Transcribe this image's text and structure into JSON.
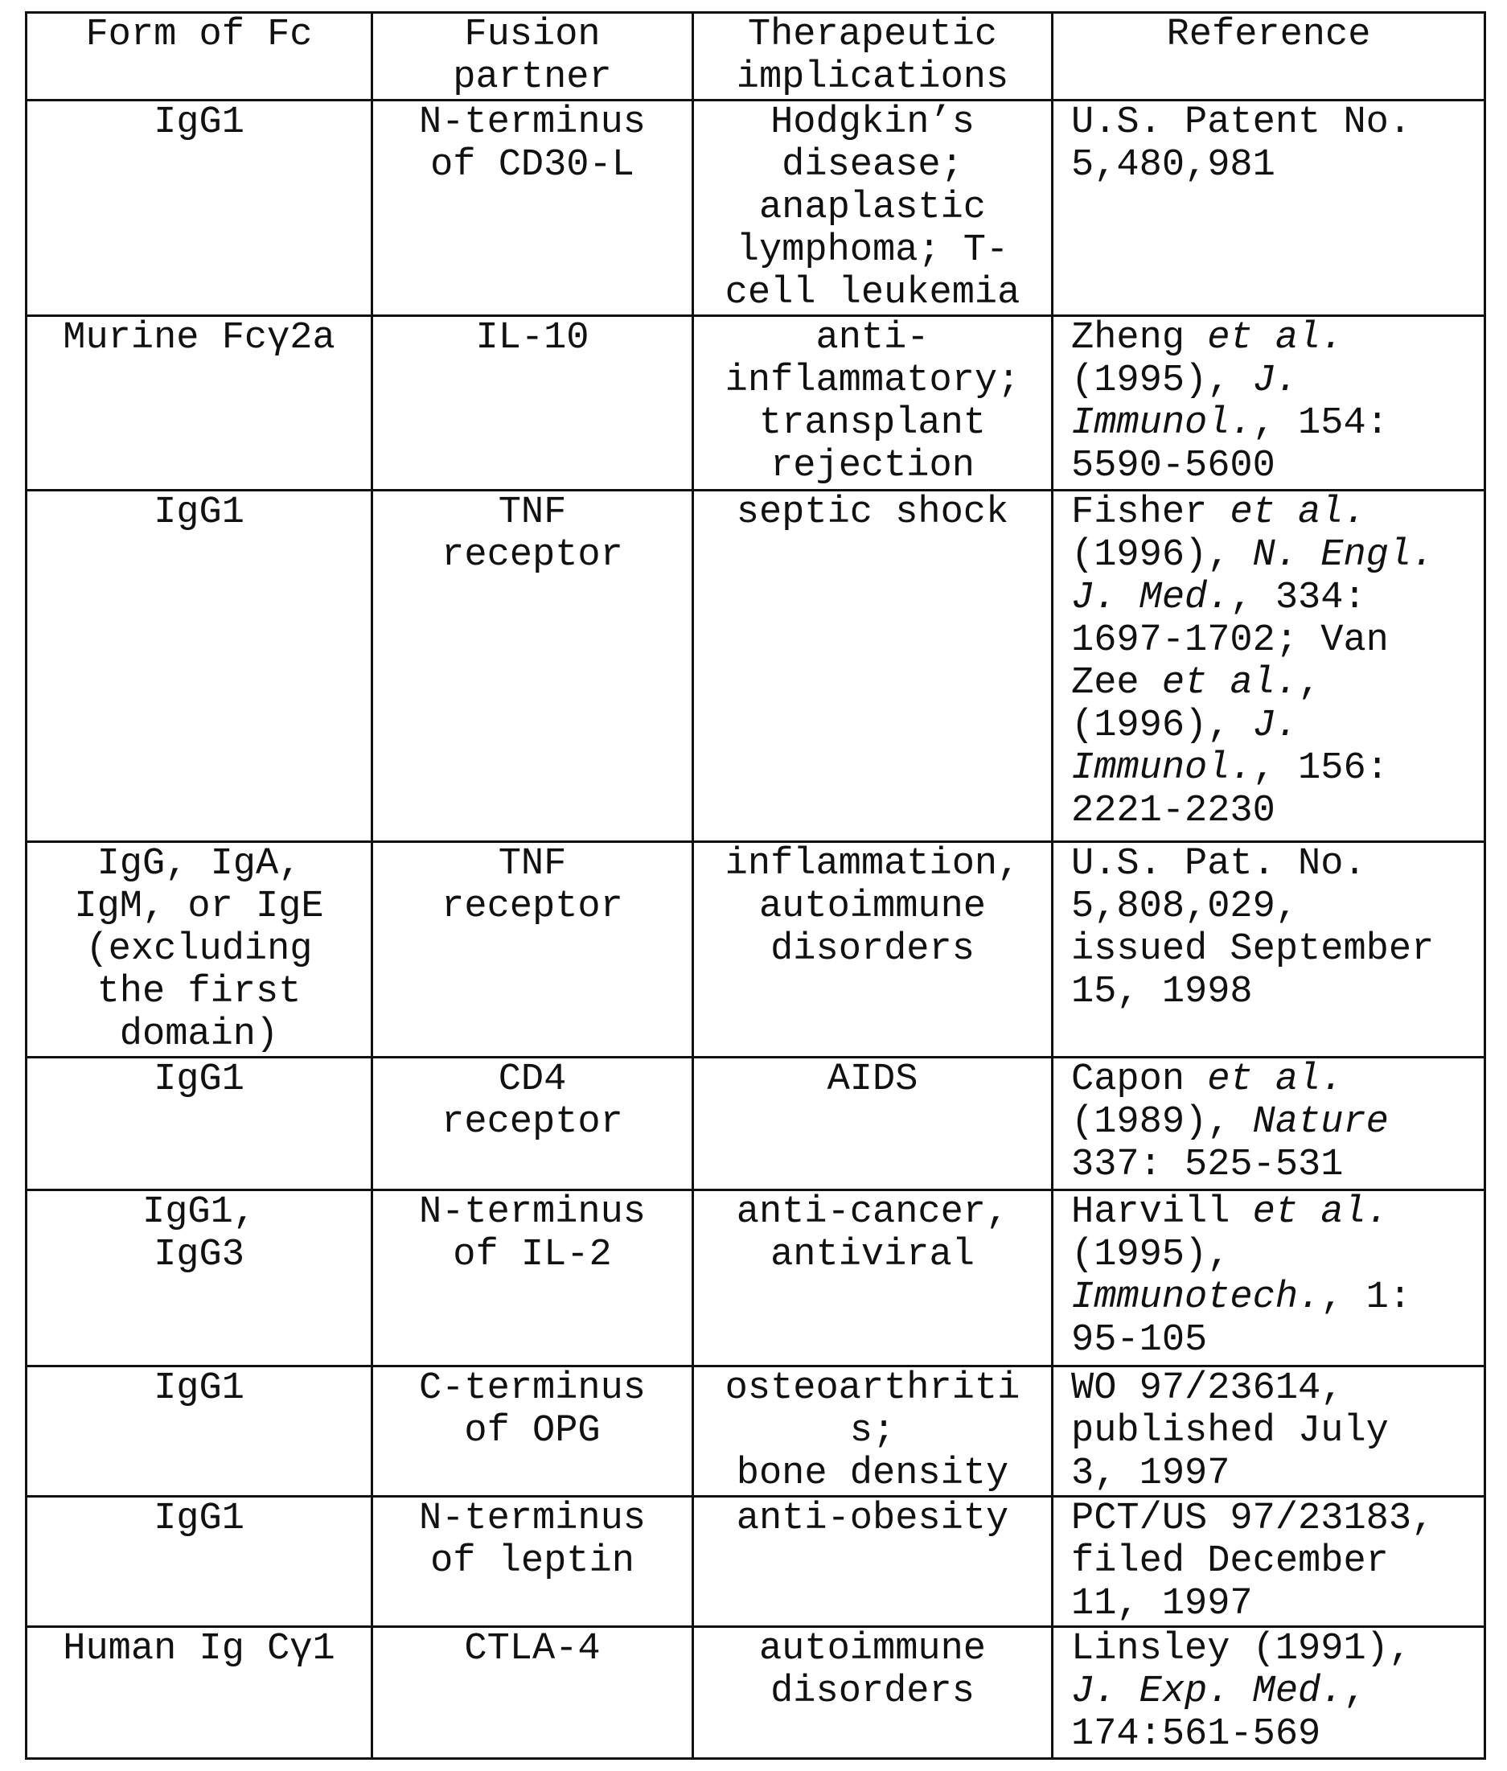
{
  "table": {
    "headers": [
      "Form of Fc",
      "Fusion\npartner",
      "Therapeutic\nimplications",
      "Reference"
    ],
    "rows": [
      {
        "form": "IgG1",
        "partner": "N-terminus\nof CD30-L",
        "implications": "Hodgkin’s\ndisease;\nanaplastic\nlymphoma; T-\ncell leukemia",
        "reference": [
          {
            "text": "U.S. Patent No.\n5,480,981",
            "italic": false
          }
        ]
      },
      {
        "form": "Murine Fcγ2a",
        "partner": "IL-10",
        "implications": "anti-\ninflammatory;\ntransplant\nrejection",
        "reference": [
          {
            "text": "Zheng ",
            "italic": false
          },
          {
            "text": "et al.",
            "italic": true
          },
          {
            "text": "\n(1995), ",
            "italic": false
          },
          {
            "text": "J.",
            "italic": true
          },
          {
            "text": "\n",
            "italic": false
          },
          {
            "text": "Immunol.",
            "italic": true
          },
          {
            "text": ", 154:\n5590-5600",
            "italic": false
          }
        ]
      },
      {
        "form": "IgG1",
        "partner": "TNF\nreceptor",
        "implications": "septic shock",
        "reference": [
          {
            "text": "Fisher ",
            "italic": false
          },
          {
            "text": "et al.",
            "italic": true
          },
          {
            "text": "\n(1996), ",
            "italic": false
          },
          {
            "text": "N. Engl.",
            "italic": true
          },
          {
            "text": "\n",
            "italic": false
          },
          {
            "text": "J. Med.",
            "italic": true
          },
          {
            "text": ", 334:\n1697-1702; Van\nZee ",
            "italic": false
          },
          {
            "text": "et al.",
            "italic": true
          },
          {
            "text": ",\n(1996), ",
            "italic": false
          },
          {
            "text": "J.",
            "italic": true
          },
          {
            "text": "\n",
            "italic": false
          },
          {
            "text": "Immunol.",
            "italic": true
          },
          {
            "text": ", 156:\n2221-2230",
            "italic": false
          }
        ]
      },
      {
        "form": "IgG, IgA,\nIgM, or IgE\n(excluding\nthe first\ndomain)",
        "partner": "TNF\nreceptor",
        "implications": "inflammation,\nautoimmune\ndisorders",
        "reference": [
          {
            "text": "U.S. Pat. No.\n5,808,029,\nissued September\n15, 1998",
            "italic": false
          }
        ]
      },
      {
        "form": "IgG1",
        "partner": "CD4\nreceptor",
        "implications": "AIDS",
        "reference": [
          {
            "text": "Capon ",
            "italic": false
          },
          {
            "text": "et al.",
            "italic": true
          },
          {
            "text": "\n(1989), ",
            "italic": false
          },
          {
            "text": "Nature",
            "italic": true
          },
          {
            "text": "\n337: 525-531",
            "italic": false
          }
        ]
      },
      {
        "form": "IgG1,\nIgG3",
        "partner": "N-terminus\nof IL-2",
        "implications": "anti-cancer,\nantiviral",
        "reference": [
          {
            "text": "Harvill ",
            "italic": false
          },
          {
            "text": "et al.",
            "italic": true
          },
          {
            "text": "\n(1995),\n",
            "italic": false
          },
          {
            "text": "Immunotech.",
            "italic": true
          },
          {
            "text": ", 1:\n95-105",
            "italic": false
          }
        ]
      },
      {
        "form": "IgG1",
        "partner": "C-terminus\nof OPG",
        "implications": "osteoarthriti\ns;\nbone density",
        "reference": [
          {
            "text": "WO 97/23614,\npublished July\n3, 1997",
            "italic": false
          }
        ]
      },
      {
        "form": "IgG1",
        "partner": "N-terminus\nof leptin",
        "implications": "anti-obesity",
        "reference": [
          {
            "text": "PCT/US 97/23183,\nfiled December\n11, 1997",
            "italic": false
          }
        ]
      },
      {
        "form": "Human Ig Cγ1",
        "partner": "CTLA-4",
        "implications": "autoimmune\ndisorders",
        "reference": [
          {
            "text": "Linsley (1991),\n",
            "italic": false
          },
          {
            "text": "J. Exp. Med.",
            "italic": true
          },
          {
            "text": ",\n174:561-569",
            "italic": false
          }
        ]
      }
    ]
  }
}
